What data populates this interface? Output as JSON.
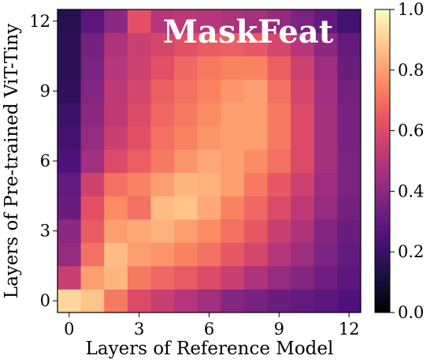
{
  "chart_data": {
    "type": "heatmap",
    "title": "MaskFeat",
    "xlabel": "Layers of Reference Model",
    "ylabel": "Layers of Pre-trained ViT-Tiny",
    "x_ticks": [
      "0",
      "3",
      "6",
      "9",
      "12"
    ],
    "y_ticks": [
      "0",
      "3",
      "6",
      "9",
      "12"
    ],
    "x_tick_values": [
      0,
      3,
      6,
      9,
      12
    ],
    "y_tick_values": [
      0,
      3,
      6,
      9,
      12
    ],
    "xlim": [
      -0.5,
      12.5
    ],
    "ylim": [
      -0.5,
      12.5
    ],
    "colorbar": {
      "colormap": "magma",
      "range": [
        0.0,
        1.0
      ],
      "ticks": [
        "0.0",
        "0.2",
        "0.4",
        "0.6",
        "0.8",
        "1.0"
      ],
      "tick_values": [
        0.0,
        0.2,
        0.4,
        0.6,
        0.8,
        1.0
      ]
    },
    "values": [
      [
        0.92,
        0.88,
        0.72,
        0.6,
        0.55,
        0.5,
        0.45,
        0.38,
        0.35,
        0.32,
        0.3,
        0.28,
        0.25
      ],
      [
        0.55,
        0.8,
        0.85,
        0.72,
        0.68,
        0.65,
        0.6,
        0.55,
        0.48,
        0.42,
        0.38,
        0.33,
        0.28
      ],
      [
        0.42,
        0.7,
        0.86,
        0.8,
        0.78,
        0.74,
        0.7,
        0.64,
        0.58,
        0.5,
        0.44,
        0.36,
        0.3
      ],
      [
        0.4,
        0.65,
        0.8,
        0.82,
        0.84,
        0.8,
        0.76,
        0.7,
        0.64,
        0.55,
        0.48,
        0.38,
        0.32
      ],
      [
        0.32,
        0.62,
        0.76,
        0.7,
        0.86,
        0.88,
        0.82,
        0.74,
        0.68,
        0.6,
        0.52,
        0.42,
        0.34
      ],
      [
        0.3,
        0.56,
        0.7,
        0.74,
        0.8,
        0.85,
        0.84,
        0.8,
        0.72,
        0.64,
        0.56,
        0.44,
        0.36
      ],
      [
        0.25,
        0.45,
        0.6,
        0.66,
        0.72,
        0.78,
        0.82,
        0.8,
        0.76,
        0.7,
        0.6,
        0.46,
        0.36
      ],
      [
        0.22,
        0.42,
        0.55,
        0.62,
        0.7,
        0.74,
        0.78,
        0.8,
        0.8,
        0.72,
        0.6,
        0.46,
        0.35
      ],
      [
        0.2,
        0.4,
        0.52,
        0.6,
        0.68,
        0.72,
        0.76,
        0.8,
        0.8,
        0.72,
        0.6,
        0.46,
        0.35
      ],
      [
        0.18,
        0.38,
        0.52,
        0.58,
        0.66,
        0.7,
        0.74,
        0.78,
        0.8,
        0.7,
        0.58,
        0.45,
        0.34
      ],
      [
        0.16,
        0.36,
        0.5,
        0.56,
        0.62,
        0.68,
        0.72,
        0.74,
        0.74,
        0.66,
        0.56,
        0.44,
        0.32
      ],
      [
        0.16,
        0.34,
        0.48,
        0.55,
        0.58,
        0.62,
        0.65,
        0.66,
        0.64,
        0.58,
        0.5,
        0.4,
        0.3
      ],
      [
        0.15,
        0.28,
        0.4,
        0.62,
        0.5,
        0.52,
        0.5,
        0.48,
        0.46,
        0.42,
        0.36,
        0.3,
        0.22
      ]
    ]
  }
}
